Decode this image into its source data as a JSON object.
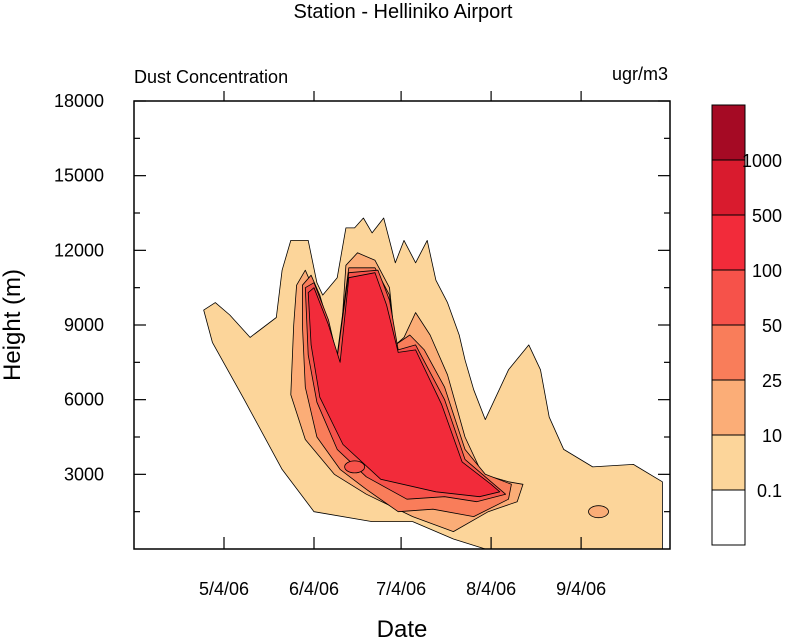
{
  "chart_data": {
    "type": "contour",
    "title": "Station - Helliniko Airport",
    "left_label": "Dust Concentration",
    "right_label": "ugr/m3",
    "xlabel": "Date",
    "ylabel": "Height (m)",
    "x_ticks": [
      "5/4/06",
      "6/4/06",
      "7/4/06",
      "8/4/06",
      "9/4/06"
    ],
    "y_ticks": [
      3000,
      6000,
      9000,
      12000,
      15000,
      18000
    ],
    "ylim": [
      0,
      18000
    ],
    "legend_labels": [
      "0.1",
      "10",
      "25",
      "50",
      "100",
      "500",
      "1000"
    ],
    "legend_colors": [
      "#ffffff",
      "#fcd59a",
      "#fbad77",
      "#f97d5a",
      "#f6524a",
      "#f22b3a",
      "#d91b2e",
      "#a50a24"
    ],
    "levels": [
      {
        "threshold": "0.1",
        "color": "#fcd59a",
        "outline": [
          [
            "4/27/06",
            9600
          ],
          [
            "5/1/06",
            9900
          ],
          [
            "5/6/06",
            9400
          ],
          [
            "5/13/06",
            8500
          ],
          [
            "5/22/06",
            9300
          ],
          [
            "5/24/06",
            11200
          ],
          [
            "5/27/06",
            12400
          ],
          [
            "6/2/06",
            12400
          ],
          [
            "6/5/06",
            10700
          ],
          [
            "6/7/06",
            10200
          ],
          [
            "6/12/06",
            10900
          ],
          [
            "6/15/06",
            12900
          ],
          [
            "6/18/06",
            12900
          ],
          [
            "6/21/06",
            13300
          ],
          [
            "6/24/06",
            12700
          ],
          [
            "6/28/06",
            13300
          ],
          [
            "7/2/06",
            11500
          ],
          [
            "7/5/06",
            12400
          ],
          [
            "7/9/06",
            11500
          ],
          [
            "7/13/06",
            12400
          ],
          [
            "7/16/06",
            10800
          ],
          [
            "7/20/06",
            9900
          ],
          [
            "7/24/06",
            8600
          ],
          [
            "7/26/06",
            7600
          ],
          [
            "7/29/06",
            6400
          ],
          [
            "8/2/06",
            5200
          ],
          [
            "8/10/06",
            7200
          ],
          [
            "8/17/06",
            8200
          ],
          [
            "8/21/06",
            7200
          ],
          [
            "8/24/06",
            5300
          ],
          [
            "8/29/06",
            4000
          ],
          [
            "9/8/06",
            3300
          ],
          [
            "9/22/06",
            3400
          ],
          [
            "10/2/06",
            2700
          ],
          [
            "10/2/06",
            0
          ],
          [
            "8/2/06",
            0
          ],
          [
            "7/22/06",
            400
          ],
          [
            "7/8/06",
            1100
          ],
          [
            "6/24/06",
            1100
          ],
          [
            "6/4/06",
            1500
          ],
          [
            "5/24/06",
            3200
          ],
          [
            "5/11/06",
            6000
          ],
          [
            "4/30/06",
            8300
          ]
        ]
      },
      {
        "threshold": "10",
        "color": "#fbad77",
        "outline": [
          [
            "5/29/06",
            10600
          ],
          [
            "6/1/06",
            11200
          ],
          [
            "6/4/06",
            10400
          ],
          [
            "6/10/06",
            7800
          ],
          [
            "6/13/06",
            7900
          ],
          [
            "6/15/06",
            11400
          ],
          [
            "6/19/06",
            11900
          ],
          [
            "6/25/06",
            11600
          ],
          [
            "6/30/06",
            10500
          ],
          [
            "7/2/06",
            8200
          ],
          [
            "7/5/06",
            8500
          ],
          [
            "7/9/06",
            9500
          ],
          [
            "7/14/06",
            8600
          ],
          [
            "7/20/06",
            7000
          ],
          [
            "7/26/06",
            4500
          ],
          [
            "8/1/06",
            3000
          ],
          [
            "8/10/06",
            2700
          ],
          [
            "8/15/06",
            2600
          ],
          [
            "8/13/06",
            1900
          ],
          [
            "8/3/06",
            1500
          ],
          [
            "7/22/06",
            700
          ],
          [
            "7/8/06",
            1300
          ],
          [
            "6/22/06",
            2200
          ],
          [
            "6/11/06",
            3000
          ],
          [
            "6/1/06",
            4400
          ],
          [
            "5/27/06",
            6200
          ],
          [
            "5/28/06",
            9000
          ]
        ]
      },
      {
        "threshold": "25",
        "color": "#f97d5a",
        "outline": [
          [
            "5/31/06",
            10600
          ],
          [
            "6/3/06",
            11000
          ],
          [
            "6/6/06",
            10200
          ],
          [
            "6/12/06",
            7800
          ],
          [
            "6/16/06",
            11300
          ],
          [
            "6/25/06",
            11300
          ],
          [
            "6/30/06",
            10200
          ],
          [
            "7/2/06",
            8200
          ],
          [
            "7/7/06",
            8600
          ],
          [
            "7/12/06",
            8000
          ],
          [
            "7/19/06",
            6500
          ],
          [
            "7/26/06",
            4000
          ],
          [
            "8/2/06",
            3000
          ],
          [
            "8/11/06",
            2600
          ],
          [
            "8/10/06",
            2000
          ],
          [
            "7/29/06",
            1300
          ],
          [
            "7/15/06",
            1600
          ],
          [
            "7/3/06",
            1500
          ],
          [
            "6/22/06",
            2400
          ],
          [
            "6/13/06",
            3200
          ],
          [
            "6/5/06",
            4500
          ],
          [
            "6/1/06",
            6500
          ],
          [
            "5/31/06",
            9000
          ]
        ]
      },
      {
        "threshold": "50",
        "color": "#f6524a",
        "outline": [
          [
            "6/1/06",
            10500
          ],
          [
            "6/4/06",
            10700
          ],
          [
            "6/9/06",
            9200
          ],
          [
            "6/12/06",
            7700
          ],
          [
            "6/16/06",
            11100
          ],
          [
            "6/26/06",
            11200
          ],
          [
            "6/30/06",
            10000
          ],
          [
            "7/3/06",
            8000
          ],
          [
            "7/9/06",
            8200
          ],
          [
            "7/19/06",
            6000
          ],
          [
            "7/26/06",
            3600
          ],
          [
            "8/4/06",
            2700
          ],
          [
            "8/9/06",
            2200
          ],
          [
            "7/30/06",
            1900
          ],
          [
            "7/19/06",
            2100
          ],
          [
            "7/6/06",
            2000
          ],
          [
            "6/22/06",
            2900
          ],
          [
            "6/12/06",
            4000
          ],
          [
            "6/5/06",
            5900
          ],
          [
            "6/2/06",
            7800
          ]
        ]
      },
      {
        "threshold": "100",
        "color": "#f22b3a",
        "outline": [
          [
            "6/2/06",
            10300
          ],
          [
            "6/4/06",
            10500
          ],
          [
            "6/9/06",
            9000
          ],
          [
            "6/13/06",
            7500
          ],
          [
            "6/16/06",
            10900
          ],
          [
            "6/25/06",
            11100
          ],
          [
            "6/29/06",
            9800
          ],
          [
            "7/3/06",
            7900
          ],
          [
            "7/9/06",
            8000
          ],
          [
            "7/18/06",
            5800
          ],
          [
            "7/25/06",
            3500
          ],
          [
            "8/4/06",
            2600
          ],
          [
            "8/7/06",
            2300
          ],
          [
            "7/31/06",
            2100
          ],
          [
            "7/16/06",
            2300
          ],
          [
            "6/27/06",
            2800
          ],
          [
            "6/14/06",
            4200
          ],
          [
            "6/6/06",
            6100
          ],
          [
            "6/3/06",
            8200
          ]
        ]
      }
    ],
    "spots": [
      {
        "threshold": "0.1",
        "x": "9/10/06",
        "y": 1500,
        "color": "#fbad77"
      },
      {
        "threshold": "100",
        "x": "6/18/06",
        "y": 3300,
        "color": "#f6524a"
      }
    ]
  }
}
